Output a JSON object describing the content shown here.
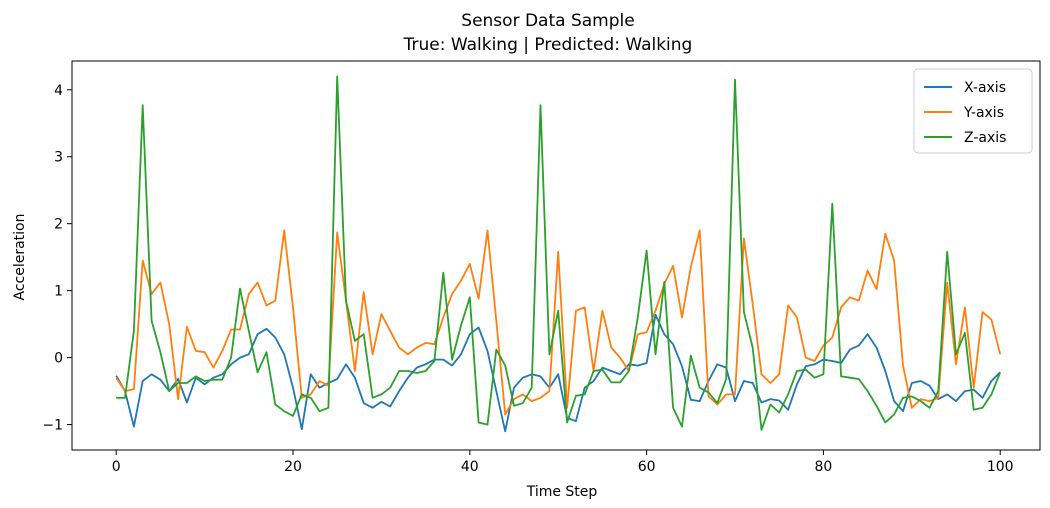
{
  "chart_data": {
    "type": "line",
    "title": "Sensor Data Sample",
    "subtitle": "True: Walking | Predicted: Walking",
    "xlabel": "Time Step",
    "ylabel": "Acceleration",
    "xlim": [
      -5,
      104.5
    ],
    "ylim": [
      -1.38,
      4.43
    ],
    "xticks": [
      0,
      20,
      40,
      60,
      80,
      100
    ],
    "yticks": [
      -1,
      0,
      1,
      2,
      3,
      4
    ],
    "xtick_labels": [
      "0",
      "20",
      "40",
      "60",
      "80",
      "100"
    ],
    "ytick_labels": [
      "−1",
      "0",
      "1",
      "2",
      "3",
      "4"
    ],
    "legend_position": "top-right",
    "series": [
      {
        "name": "X-axis",
        "color": "#1f77b4",
        "values": [
          -0.27,
          -0.5,
          -1.03,
          -0.35,
          -0.25,
          -0.33,
          -0.5,
          -0.32,
          -0.67,
          -0.3,
          -0.4,
          -0.3,
          -0.25,
          -0.1,
          0.0,
          0.05,
          0.35,
          0.43,
          0.3,
          0.05,
          -0.45,
          -1.07,
          -0.25,
          -0.45,
          -0.38,
          -0.32,
          -0.1,
          -0.3,
          -0.68,
          -0.75,
          -0.66,
          -0.73,
          -0.5,
          -0.3,
          -0.15,
          -0.1,
          -0.03,
          -0.03,
          -0.12,
          0.05,
          0.35,
          0.45,
          0.1,
          -0.5,
          -1.1,
          -0.45,
          -0.3,
          -0.25,
          -0.28,
          -0.45,
          -0.25,
          -0.9,
          -0.95,
          -0.45,
          -0.35,
          -0.15,
          -0.2,
          -0.25,
          -0.1,
          -0.12,
          -0.08,
          0.64,
          0.35,
          0.2,
          -0.13,
          -0.63,
          -0.65,
          -0.35,
          -0.1,
          -0.15,
          -0.65,
          -0.35,
          -0.38,
          -0.67,
          -0.62,
          -0.64,
          -0.78,
          -0.4,
          -0.13,
          -0.1,
          -0.03,
          -0.05,
          -0.08,
          0.12,
          0.18,
          0.35,
          0.15,
          -0.2,
          -0.65,
          -0.8,
          -0.38,
          -0.35,
          -0.42,
          -0.62,
          -0.55,
          -0.65,
          -0.5,
          -0.48,
          -0.6,
          -0.35,
          -0.22
        ]
      },
      {
        "name": "Y-axis",
        "color": "#ff7f0e",
        "values": [
          -0.3,
          -0.5,
          -0.47,
          1.45,
          0.95,
          1.12,
          0.5,
          -0.62,
          0.46,
          0.1,
          0.08,
          -0.15,
          0.1,
          0.42,
          0.42,
          0.95,
          1.12,
          0.78,
          0.85,
          1.9,
          0.75,
          -0.6,
          -0.55,
          -0.35,
          -0.42,
          1.87,
          0.85,
          -0.2,
          0.98,
          0.05,
          0.65,
          0.4,
          0.15,
          0.05,
          0.15,
          0.22,
          0.2,
          0.6,
          0.95,
          1.15,
          1.4,
          0.88,
          1.9,
          0.55,
          -0.85,
          -0.62,
          -0.55,
          -0.65,
          -0.6,
          -0.5,
          1.58,
          -0.75,
          0.7,
          0.75,
          -0.2,
          0.7,
          0.15,
          0.0,
          -0.2,
          0.35,
          0.38,
          0.7,
          1.1,
          1.37,
          0.6,
          1.35,
          1.9,
          -0.58,
          -0.7,
          -0.55,
          -0.55,
          1.78,
          0.8,
          -0.25,
          -0.38,
          -0.25,
          0.78,
          0.6,
          0.0,
          -0.05,
          0.18,
          0.3,
          0.75,
          0.9,
          0.85,
          1.3,
          1.02,
          1.85,
          1.45,
          -0.12,
          -0.75,
          -0.62,
          -0.65,
          -0.6,
          1.12,
          -0.1,
          0.75,
          -0.45,
          0.68,
          0.57,
          0.05
        ]
      },
      {
        "name": "Z-axis",
        "color": "#2ca02c",
        "values": [
          -0.6,
          -0.6,
          0.4,
          3.77,
          0.55,
          0.08,
          -0.5,
          -0.38,
          -0.38,
          -0.28,
          -0.35,
          -0.33,
          -0.33,
          0.0,
          1.03,
          0.4,
          -0.22,
          0.08,
          -0.7,
          -0.8,
          -0.87,
          -0.55,
          -0.6,
          -0.8,
          -0.75,
          4.2,
          0.85,
          0.25,
          0.35,
          -0.6,
          -0.55,
          -0.45,
          -0.2,
          -0.2,
          -0.23,
          -0.2,
          -0.05,
          1.27,
          -0.03,
          0.48,
          0.9,
          -0.97,
          -1.0,
          0.12,
          -0.12,
          -0.72,
          -0.68,
          -0.45,
          3.77,
          0.05,
          0.7,
          -0.97,
          -0.57,
          -0.55,
          -0.2,
          -0.18,
          -0.37,
          -0.37,
          -0.2,
          0.6,
          1.6,
          0.05,
          1.13,
          -0.75,
          -1.03,
          0.03,
          -0.45,
          -0.52,
          -0.68,
          -0.32,
          4.15,
          0.68,
          0.15,
          -1.08,
          -0.7,
          -0.82,
          -0.55,
          -0.2,
          -0.18,
          -0.3,
          -0.25,
          2.3,
          -0.28,
          -0.3,
          -0.32,
          -0.5,
          -0.72,
          -0.97,
          -0.85,
          -0.6,
          -0.58,
          -0.65,
          -0.75,
          -0.5,
          1.58,
          0.05,
          0.37,
          -0.78,
          -0.75,
          -0.55,
          -0.22
        ]
      }
    ]
  }
}
